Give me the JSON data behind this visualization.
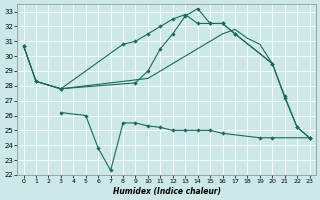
{
  "xlabel": "Humidex (Indice chaleur)",
  "bg_color": "#cce8e8",
  "grid_color": "#b0d0d0",
  "line_color": "#1a6b5a",
  "xlim": [
    -0.5,
    23.5
  ],
  "ylim": [
    22,
    33.5
  ],
  "xticks": [
    0,
    1,
    2,
    3,
    4,
    5,
    6,
    7,
    8,
    9,
    10,
    11,
    12,
    13,
    14,
    15,
    16,
    17,
    18,
    19,
    20,
    21,
    22,
    23
  ],
  "yticks": [
    22,
    23,
    24,
    25,
    26,
    27,
    28,
    29,
    30,
    31,
    32,
    33
  ],
  "s1_x": [
    0,
    1,
    3,
    10,
    11,
    12,
    13,
    14,
    15,
    16,
    17,
    18,
    19,
    20
  ],
  "s1_y": [
    30.7,
    28.3,
    27.8,
    28.5,
    29.0,
    29.5,
    30.0,
    30.5,
    31.0,
    31.5,
    31.8,
    31.2,
    30.8,
    29.5
  ],
  "s2_x": [
    0,
    1,
    3,
    8,
    9,
    10,
    11,
    12,
    13,
    14,
    15,
    16,
    17,
    20,
    21,
    22,
    23
  ],
  "s2_y": [
    30.7,
    28.3,
    27.8,
    30.8,
    31.0,
    31.5,
    32.0,
    32.5,
    32.8,
    32.2,
    32.2,
    32.2,
    31.5,
    29.5,
    27.2,
    25.2,
    24.5
  ],
  "s3_x": [
    3,
    5,
    6,
    7,
    8,
    9,
    10,
    11,
    12,
    13,
    14,
    15,
    16,
    19,
    20,
    23
  ],
  "s3_y": [
    26.2,
    26.0,
    23.8,
    22.3,
    25.5,
    25.5,
    25.3,
    25.2,
    25.0,
    25.0,
    25.0,
    25.0,
    24.8,
    24.5,
    24.5,
    24.5
  ],
  "s4_x": [
    0,
    1,
    3,
    9,
    10,
    11,
    12,
    13,
    14,
    15,
    16,
    17,
    20,
    21,
    22,
    23
  ],
  "s4_y": [
    30.7,
    28.3,
    27.8,
    28.2,
    29.0,
    30.5,
    31.5,
    32.7,
    33.2,
    32.2,
    32.2,
    31.5,
    29.5,
    27.3,
    25.2,
    24.5
  ]
}
